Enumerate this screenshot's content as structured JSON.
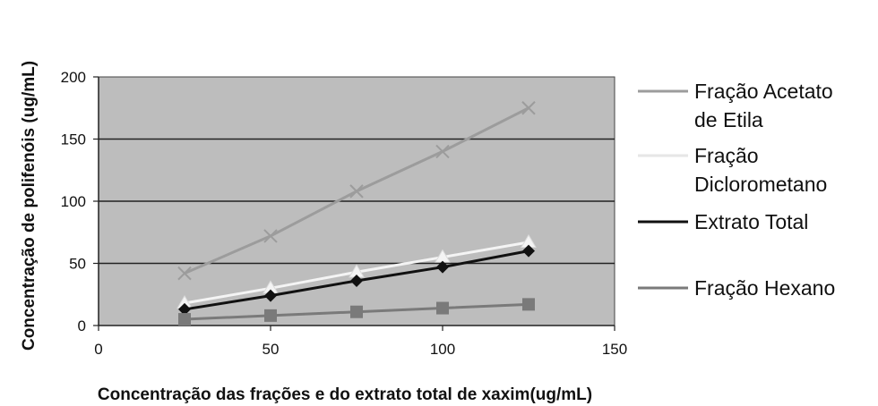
{
  "chart_data": {
    "type": "line",
    "xlabel": "Concentração das frações e do extrato total de xaxim(ug/mL)",
    "ylabel": "Concentração de polifenóis (ug/mL)",
    "xlim": [
      0,
      150
    ],
    "ylim": [
      0,
      200
    ],
    "x_ticks": [
      "0",
      "50",
      "100",
      "150"
    ],
    "y_ticks": [
      "0",
      "50",
      "100",
      "150",
      "200"
    ],
    "grid": "horizontal",
    "plot_background": "#bdbdbd",
    "legend_position": "right",
    "x": [
      25,
      50,
      75,
      100,
      125
    ],
    "series": [
      {
        "name_lines": [
          "Fração Acetato",
          "de Etila"
        ],
        "color": "#9c9c9c",
        "marker": "x",
        "values": [
          42,
          72,
          108,
          140,
          175
        ]
      },
      {
        "name_lines": [
          "Fração",
          "Diclorometano"
        ],
        "color": "#f4f4f4",
        "marker": "triangle",
        "values": [
          18,
          30,
          43,
          55,
          67
        ]
      },
      {
        "name_lines": [
          "Extrato Total"
        ],
        "color": "#111111",
        "marker": "diamond",
        "values": [
          13,
          24,
          36,
          47,
          60
        ]
      },
      {
        "name_lines": [
          "Fração Hexano"
        ],
        "color": "#7a7a7a",
        "marker": "square",
        "values": [
          5,
          8,
          11,
          14,
          17
        ]
      }
    ]
  }
}
